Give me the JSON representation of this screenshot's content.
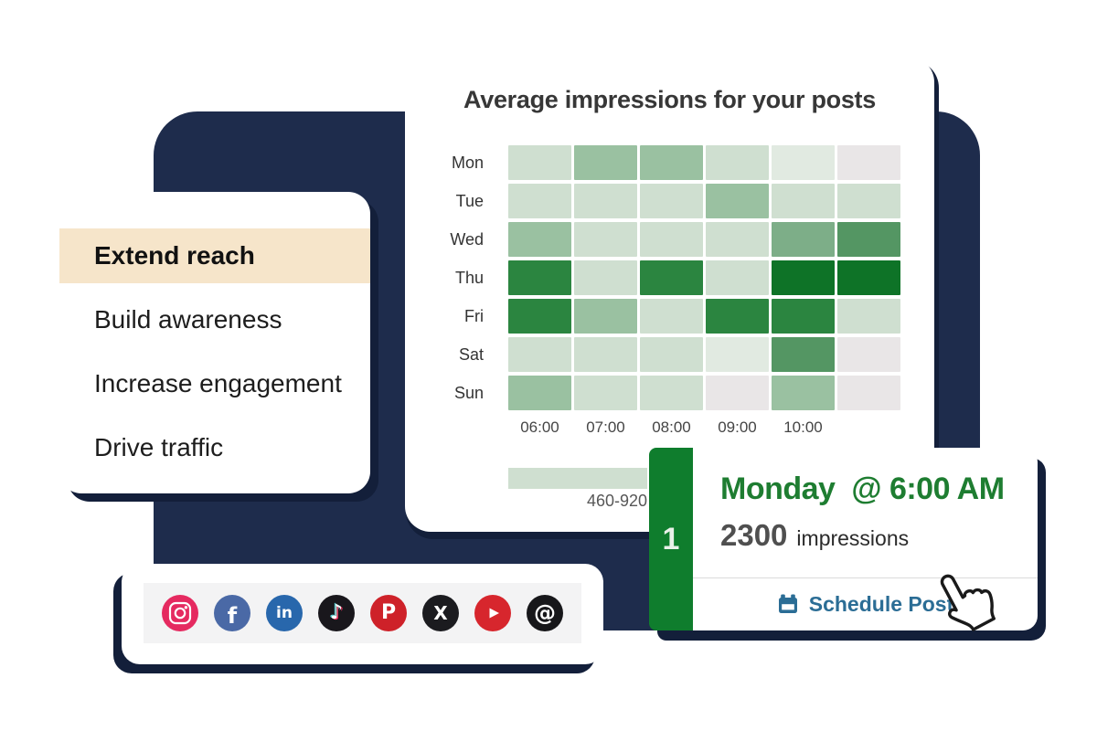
{
  "canvas": {
    "bg": "#ffffff",
    "panel_color": "#1e2c4c",
    "shadow_color": "#131f3a"
  },
  "menu_card": {
    "highlight_color": "#f6e5ca",
    "items": [
      {
        "label": "Extend reach",
        "highlighted": true
      },
      {
        "label": "Build awareness",
        "highlighted": false
      },
      {
        "label": "Increase engagement",
        "highlighted": false
      },
      {
        "label": "Drive traffic",
        "highlighted": false
      }
    ]
  },
  "heatmap_card": {
    "title": "Average impressions for your posts"
  },
  "chart_data": {
    "type": "heatmap",
    "title": "Average impressions for your posts",
    "x_labels": [
      "06:00",
      "07:00",
      "08:00",
      "09:00",
      "10:00",
      ""
    ],
    "y_labels": [
      "Mon",
      "Tue",
      "Wed",
      "Thu",
      "Fri",
      "Sat",
      "Sun"
    ],
    "levels": [
      [
        2,
        3,
        3,
        2,
        1,
        0
      ],
      [
        2,
        2,
        2,
        3,
        2,
        2
      ],
      [
        3,
        2,
        2,
        2,
        4,
        5
      ],
      [
        6,
        2,
        6,
        2,
        7,
        7
      ],
      [
        6,
        3,
        2,
        6,
        6,
        2
      ],
      [
        2,
        2,
        2,
        1,
        5,
        0
      ],
      [
        3,
        2,
        2,
        0,
        3,
        0
      ]
    ],
    "level_colors": [
      "#e9e6e7",
      "#e1eae1",
      "#cfdfd0",
      "#9ac1a1",
      "#7dae88",
      "#549663",
      "#2b8540",
      "#0e7327"
    ],
    "legend": {
      "label": "460-920",
      "swatch_color": "#cfdfd0"
    },
    "layout": {
      "grid": false,
      "legend_position": "bottom-left"
    }
  },
  "schedule_card": {
    "rank": "1",
    "rank_bg": "#0f7d2d",
    "headline": "Monday  @ 6:00 AM",
    "headline_color": "#1e7d31",
    "metric_value": "2300",
    "metric_unit": "impressions",
    "action_label": "Schedule Post",
    "action_color": "#2b6d95"
  },
  "social_bar": {
    "icons": [
      {
        "name": "instagram",
        "bg": "#e52a60",
        "glyph": ""
      },
      {
        "name": "facebook",
        "bg": "#4a69a6",
        "glyph": "f"
      },
      {
        "name": "linkedin",
        "bg": "#2867ac",
        "glyph": "in"
      },
      {
        "name": "tiktok",
        "bg": "#19171c",
        "glyph": "♪"
      },
      {
        "name": "pinterest",
        "bg": "#ce2129",
        "glyph": "P"
      },
      {
        "name": "x",
        "bg": "#1b1b1f",
        "glyph": "X"
      },
      {
        "name": "youtube",
        "bg": "#d7262d",
        "glyph": ""
      },
      {
        "name": "threads",
        "bg": "#17171a",
        "glyph": "@"
      }
    ]
  }
}
